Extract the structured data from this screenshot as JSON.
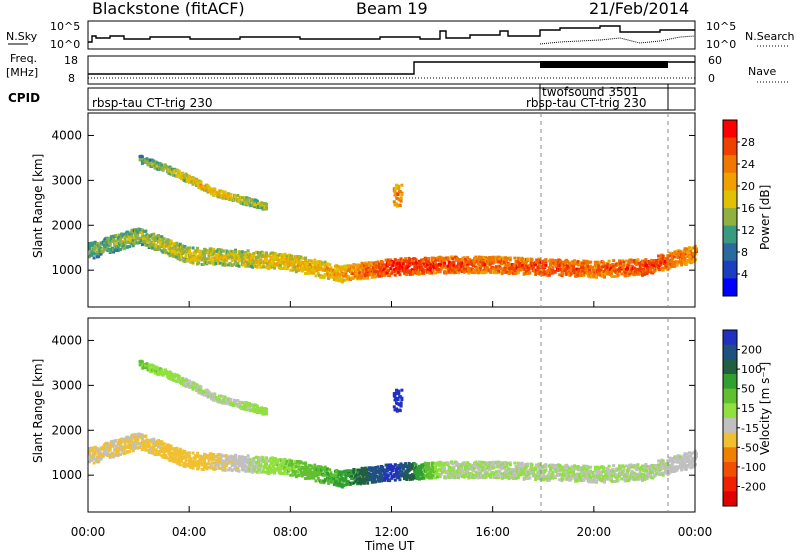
{
  "header": {
    "station": "Blackstone (fitACF)",
    "beam": "Beam 19",
    "date": "21/Feb/2014"
  },
  "panels": {
    "nsky": {
      "left_label": "N.Sky",
      "right_label": "N.Search",
      "tick_hi": "10^5",
      "tick_lo": "10^0"
    },
    "freq": {
      "label_line1": "Freq.",
      "label_line2": "[MHz]",
      "ticks_left": [
        "18",
        "8"
      ],
      "ticks_right": [
        "60",
        "0"
      ],
      "right_label": "Nave"
    },
    "cpid": {
      "label": "CPID",
      "programs": [
        "rbsp-tau CT-trig 230",
        "twofsound 3501",
        "rbsp-tau CT-trig 230"
      ]
    }
  },
  "power_colorbar": {
    "label": "Power [dB]",
    "ticks": [
      "28",
      "24",
      "20",
      "16",
      "12",
      "8",
      "4"
    ],
    "colors": [
      "#ff0000",
      "#f04000",
      "#f07800",
      "#f0a000",
      "#e0c000",
      "#90b040",
      "#3a9a80",
      "#2a6aa0",
      "#1a40c0",
      "#0000ff"
    ]
  },
  "velocity_colorbar": {
    "label": "Velocity [m s⁻¹]",
    "ticks": [
      "200",
      "100",
      "50",
      "15",
      "-15",
      "-50",
      "-100",
      "-200"
    ],
    "colors": [
      "#2030c0",
      "#205080",
      "#206040",
      "#30a030",
      "#60c030",
      "#90e040",
      "#c0c0c0",
      "#f0c030",
      "#f08000",
      "#f05000",
      "#f02000",
      "#e00000"
    ]
  },
  "axes": {
    "ylabel": "Slant Range [km]",
    "xlabel": "Time UT",
    "yticks": [
      "4000",
      "3000",
      "2000",
      "1000"
    ],
    "xticks": [
      "00:00",
      "04:00",
      "08:00",
      "12:00",
      "16:00",
      "20:00",
      "00:00"
    ]
  },
  "chart_data": [
    {
      "type": "heatmap",
      "title": "Power",
      "xlabel": "Time UT",
      "ylabel": "Slant Range [km]",
      "xlim": [
        0,
        24
      ],
      "ylim": [
        180,
        4500
      ],
      "colorbar_label": "Power [dB]",
      "features": [
        {
          "name": "main band",
          "time": [
            0,
            2,
            4,
            6,
            8,
            10,
            12,
            14,
            16,
            18,
            20,
            22,
            24
          ],
          "range_km": [
            1450,
            1800,
            1350,
            1300,
            1200,
            950,
            1100,
            1150,
            1150,
            1100,
            1050,
            1100,
            1400
          ],
          "power_db": [
            12,
            14,
            16,
            16,
            18,
            20,
            28,
            26,
            24,
            26,
            24,
            26,
            22
          ]
        },
        {
          "name": "upper band",
          "time": [
            2,
            3,
            4,
            5,
            6,
            7
          ],
          "range_km": [
            3500,
            3300,
            3050,
            2750,
            2600,
            2450
          ],
          "power_db": [
            12,
            14,
            18,
            18,
            16,
            14
          ]
        },
        {
          "name": "echo near 12 UT",
          "time": [
            12.2
          ],
          "range_km": [
            2700
          ],
          "power_db": [
            22
          ]
        }
      ]
    },
    {
      "type": "heatmap",
      "title": "Velocity",
      "xlabel": "Time UT",
      "ylabel": "Slant Range [km]",
      "xlim": [
        0,
        24
      ],
      "ylim": [
        180,
        4500
      ],
      "colorbar_label": "Velocity [m s⁻¹]",
      "features": [
        {
          "name": "main band",
          "time": [
            0,
            2,
            4,
            6,
            8,
            10,
            12,
            14,
            16,
            18,
            20,
            22,
            24
          ],
          "range_km": [
            1450,
            1800,
            1350,
            1300,
            1200,
            950,
            1100,
            1150,
            1150,
            1100,
            1050,
            1100,
            1400
          ],
          "velocity_ms": [
            -40,
            -40,
            -60,
            -20,
            40,
            80,
            200,
            0,
            0,
            0,
            0,
            0,
            -20
          ]
        },
        {
          "name": "upper band",
          "time": [
            2,
            3,
            4,
            5,
            6,
            7
          ],
          "range_km": [
            3500,
            3300,
            3050,
            2750,
            2600,
            2450
          ],
          "velocity_ms": [
            40,
            20,
            0,
            0,
            0,
            20
          ]
        },
        {
          "name": "echo near 12 UT",
          "time": [
            12.2
          ],
          "range_km": [
            2700
          ],
          "velocity_ms": [
            200
          ]
        }
      ]
    }
  ]
}
